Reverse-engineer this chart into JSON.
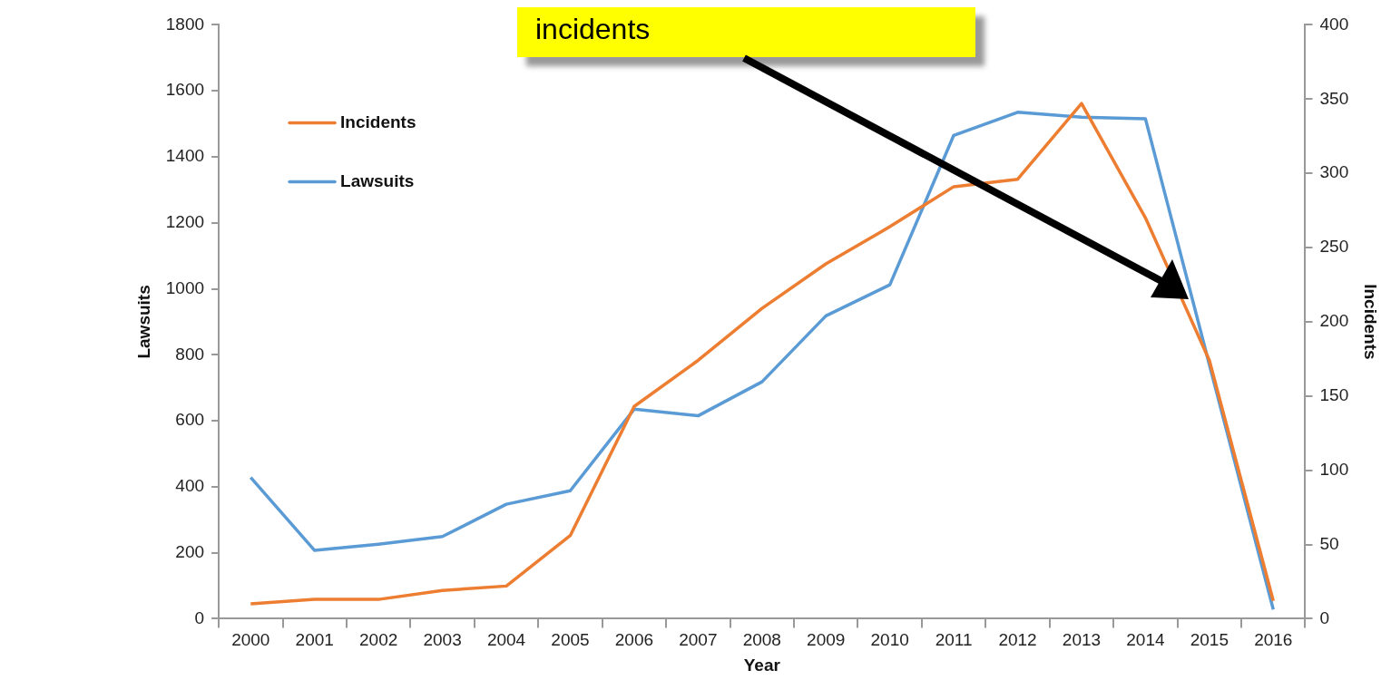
{
  "chart_data": {
    "type": "line",
    "xlabel": "Year",
    "ylabel": "Lawsuits",
    "y2label": "Incidents",
    "annotations": [
      "incidents"
    ],
    "categories": [
      "2000",
      "2001",
      "2002",
      "2003",
      "2004",
      "2005",
      "2006",
      "2007",
      "2008",
      "2009",
      "2010",
      "2011",
      "2012",
      "2013",
      "2014",
      "2015",
      "2016"
    ],
    "series": [
      {
        "name": "Incidents",
        "color": "#ed7d31",
        "axis": "y2",
        "values": [
          10,
          13,
          13,
          19,
          22,
          56,
          143,
          174,
          209,
          239,
          264,
          291,
          296,
          347,
          270,
          174,
          12
        ]
      },
      {
        "name": "Lawsuits",
        "color": "#5b9bd5",
        "axis": "y",
        "values": [
          428,
          207,
          226,
          249,
          347,
          388,
          635,
          615,
          718,
          918,
          1012,
          1465,
          1535,
          1520,
          1515,
          770,
          28
        ]
      }
    ],
    "ylim": [
      0,
      1800
    ],
    "yticks": [
      0,
      200,
      400,
      600,
      800,
      1000,
      1200,
      1400,
      1600,
      1800
    ],
    "y2lim": [
      0,
      400
    ],
    "y2ticks": [
      0,
      50,
      100,
      150,
      200,
      250,
      300,
      350,
      400
    ],
    "grid": false,
    "legend": "top left",
    "marker": "none",
    "line_style": "solid"
  }
}
